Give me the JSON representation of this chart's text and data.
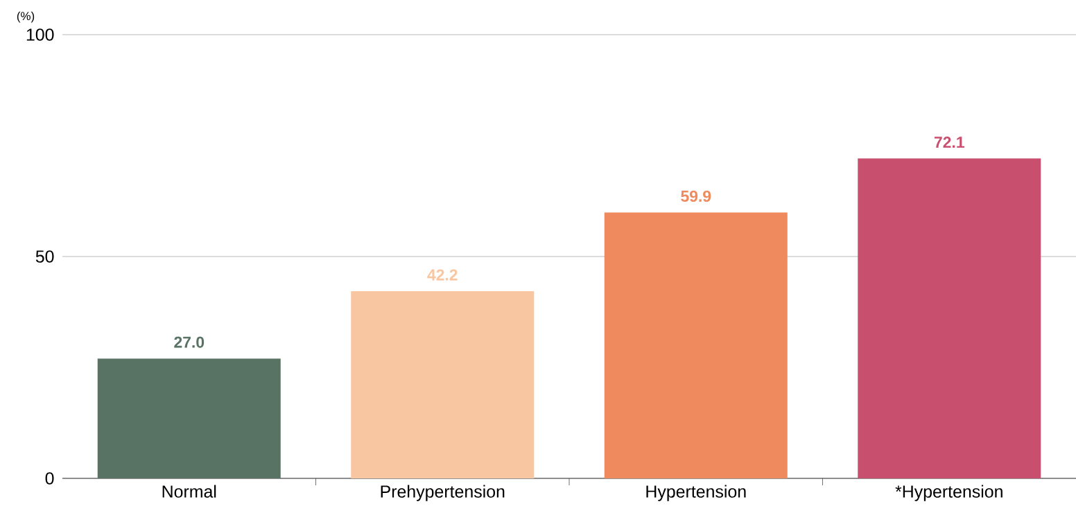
{
  "chart_data": {
    "type": "bar",
    "ylabel": "(%)",
    "categories": [
      "Normal",
      "Prehypertension",
      "Hypertension",
      "*Hypertension"
    ],
    "values": [
      27.0,
      42.2,
      59.9,
      72.1
    ],
    "colors": [
      "#587263",
      "#f8c6a0",
      "#ef8a5e",
      "#c94f6f"
    ],
    "value_labels": [
      "27.0",
      "42.2",
      "59.9",
      "72.1"
    ],
    "ylim": [
      0,
      100
    ],
    "yticks": [
      0,
      50,
      100
    ],
    "grid": "y"
  }
}
